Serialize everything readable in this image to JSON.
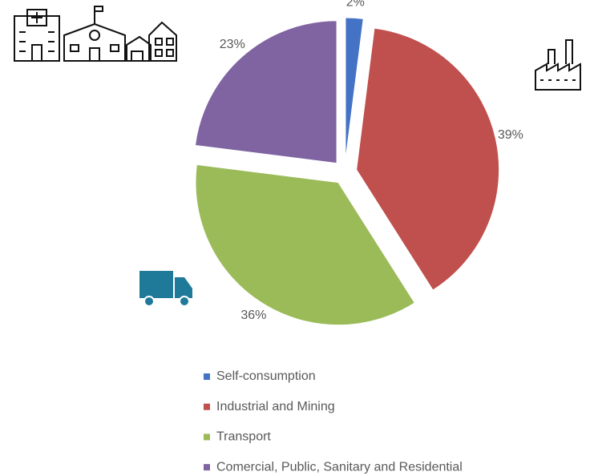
{
  "chart_data": {
    "type": "pie",
    "categories": [
      "Self-consumption",
      "Industrial and Mining",
      "Transport",
      "Comercial, Public, Sanitary and Residential"
    ],
    "values": [
      2,
      39,
      36,
      23
    ],
    "value_labels": [
      "2%",
      "39%",
      "36%",
      "23%"
    ],
    "colors": [
      "#4472c4",
      "#c0504d",
      "#9bbb59",
      "#8064a2"
    ],
    "legend": "bottom"
  }
}
